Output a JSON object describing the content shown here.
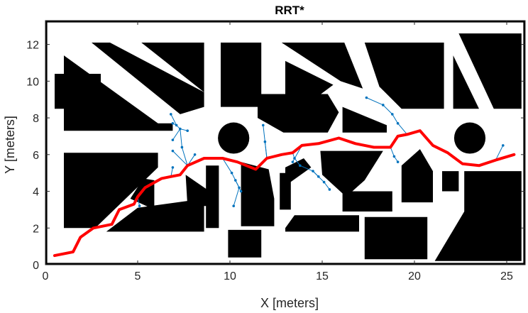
{
  "chart_data": {
    "type": "line",
    "title": "RRT*",
    "xlabel": "X [meters]",
    "ylabel": "Y [meters]",
    "xlim": [
      0,
      26
    ],
    "ylim": [
      0,
      13.3
    ],
    "xticks": [
      0,
      5,
      10,
      15,
      20,
      25
    ],
    "yticks": [
      0,
      2,
      4,
      6,
      8,
      10,
      12
    ],
    "grid": false,
    "legend": "none",
    "colors": {
      "path": "#ff0000",
      "tree": "#0072bd",
      "obstacle": "#000000",
      "free_space": "#ffffff"
    },
    "series": [
      {
        "role": "path",
        "x": [
          0.5,
          1.5,
          1.9,
          2.6,
          3.6,
          4.0,
          4.8,
          5.0,
          5.4,
          6.3,
          6.8,
          7.3,
          7.7,
          8.6,
          9.6,
          10.4,
          11.4,
          12.0,
          12.8,
          13.4,
          13.9,
          14.8,
          15.9,
          16.8,
          17.8,
          18.7,
          19.1,
          19.6,
          20.3,
          21.0,
          21.8,
          22.6,
          23.5,
          24.4,
          25.4
        ],
        "y": [
          0.5,
          0.7,
          1.5,
          2.0,
          2.2,
          3.0,
          3.3,
          3.7,
          4.2,
          4.7,
          4.8,
          4.9,
          5.4,
          5.8,
          5.8,
          5.6,
          5.2,
          5.8,
          6.0,
          6.1,
          6.5,
          6.6,
          6.9,
          6.6,
          6.4,
          6.4,
          7.0,
          7.1,
          7.3,
          6.5,
          6.1,
          5.5,
          5.4,
          5.7,
          6.0
        ]
      }
    ],
    "tree_edges": [
      [
        [
          6.8,
          8.2
        ],
        [
          7.1,
          7.6
        ]
      ],
      [
        [
          6.9,
          7.7
        ],
        [
          7.1,
          7.6
        ]
      ],
      [
        [
          7.1,
          7.6
        ],
        [
          7.3,
          7.4
        ]
      ],
      [
        [
          7.3,
          7.4
        ],
        [
          7.7,
          7.3
        ]
      ],
      [
        [
          7.3,
          7.4
        ],
        [
          6.9,
          6.8
        ]
      ],
      [
        [
          7.3,
          7.4
        ],
        [
          7.4,
          6.4
        ]
      ],
      [
        [
          7.4,
          6.4
        ],
        [
          7.7,
          5.4
        ]
      ],
      [
        [
          7.7,
          5.4
        ],
        [
          8.1,
          6.0
        ]
      ],
      [
        [
          7.7,
          5.4
        ],
        [
          6.9,
          6.2
        ]
      ],
      [
        [
          6.8,
          4.8
        ],
        [
          6.9,
          5.3
        ]
      ],
      [
        [
          5.0,
          3.7
        ],
        [
          5.1,
          3.2
        ]
      ],
      [
        [
          10.1,
          5.0
        ],
        [
          10.3,
          4.6
        ]
      ],
      [
        [
          10.3,
          4.6
        ],
        [
          10.6,
          4.0
        ]
      ],
      [
        [
          10.3,
          4.6
        ],
        [
          10.5,
          4.2
        ]
      ],
      [
        [
          10.5,
          4.2
        ],
        [
          10.2,
          3.2
        ]
      ],
      [
        [
          9.6,
          5.8
        ],
        [
          10.1,
          5.0
        ]
      ],
      [
        [
          12.0,
          5.8
        ],
        [
          11.8,
          7.6
        ]
      ],
      [
        [
          12.0,
          5.8
        ],
        [
          11.9,
          6.7
        ]
      ],
      [
        [
          13.4,
          6.1
        ],
        [
          13.5,
          5.8
        ]
      ],
      [
        [
          13.5,
          5.8
        ],
        [
          13.8,
          5.4
        ]
      ],
      [
        [
          13.8,
          5.4
        ],
        [
          14.5,
          5.1
        ]
      ],
      [
        [
          14.5,
          5.1
        ],
        [
          14.8,
          4.8
        ]
      ],
      [
        [
          14.5,
          5.1
        ],
        [
          15.1,
          4.5
        ]
      ],
      [
        [
          15.1,
          4.5
        ],
        [
          15.4,
          4.1
        ]
      ],
      [
        [
          13.9,
          6.5
        ],
        [
          13.4,
          5.6
        ]
      ],
      [
        [
          17.4,
          9.1
        ],
        [
          18.3,
          8.7
        ]
      ],
      [
        [
          18.3,
          8.7
        ],
        [
          18.8,
          8.2
        ]
      ],
      [
        [
          18.8,
          8.2
        ],
        [
          19.1,
          7.7
        ]
      ],
      [
        [
          19.1,
          7.7
        ],
        [
          19.6,
          7.1
        ]
      ],
      [
        [
          18.7,
          6.4
        ],
        [
          18.9,
          5.9
        ]
      ],
      [
        [
          18.9,
          5.9
        ],
        [
          19.1,
          5.6
        ]
      ],
      [
        [
          24.4,
          5.7
        ],
        [
          24.8,
          6.5
        ]
      ]
    ],
    "tree_nodes": [
      [
        6.8,
        8.2
      ],
      [
        6.9,
        7.7
      ],
      [
        7.1,
        7.6
      ],
      [
        7.3,
        7.4
      ],
      [
        7.7,
        7.3
      ],
      [
        6.9,
        6.8
      ],
      [
        7.4,
        6.4
      ],
      [
        8.1,
        6.0
      ],
      [
        6.9,
        6.2
      ],
      [
        6.9,
        5.3
      ],
      [
        5.1,
        3.2
      ],
      [
        10.3,
        4.6
      ],
      [
        10.6,
        4.0
      ],
      [
        10.5,
        4.2
      ],
      [
        10.2,
        3.2
      ],
      [
        10.1,
        5.0
      ],
      [
        11.8,
        7.6
      ],
      [
        11.9,
        6.7
      ],
      [
        13.5,
        5.8
      ],
      [
        13.8,
        5.4
      ],
      [
        14.5,
        5.1
      ],
      [
        14.8,
        4.8
      ],
      [
        15.1,
        4.5
      ],
      [
        15.4,
        4.1
      ],
      [
        13.4,
        5.6
      ],
      [
        17.4,
        9.1
      ],
      [
        18.3,
        8.7
      ],
      [
        18.8,
        8.2
      ],
      [
        19.1,
        7.7
      ],
      [
        18.9,
        5.9
      ],
      [
        19.1,
        5.6
      ],
      [
        24.8,
        6.5
      ],
      [
        25.4,
        6.0
      ]
    ],
    "obstacles": [
      {
        "shape": "polygon",
        "points": [
          [
            0.0,
            13.3
          ],
          [
            26.0,
            13.3
          ],
          [
            26.0,
            0.0
          ],
          [
            0.0,
            0.0
          ]
        ]
      }
    ],
    "free_space": [
      {
        "shape": "polygon",
        "points": [
          [
            0.1,
            13.2
          ],
          [
            25.9,
            13.2
          ],
          [
            25.9,
            0.1
          ],
          [
            0.1,
            0.1
          ]
        ]
      }
    ],
    "obstacle_blocks": [
      {
        "shape": "polygon",
        "points": [
          [
            1.0,
            11.4
          ],
          [
            6.1,
            7.7
          ],
          [
            6.9,
            7.7
          ],
          [
            6.9,
            7.3
          ],
          [
            1.0,
            7.3
          ]
        ]
      },
      {
        "shape": "polygon",
        "points": [
          [
            2.5,
            12.1
          ],
          [
            8.6,
            12.1
          ],
          [
            8.6,
            9.4
          ],
          [
            5.2,
            12.1
          ]
        ]
      },
      {
        "shape": "polygon",
        "points": [
          [
            3.5,
            12.1
          ],
          [
            8.6,
            9.4
          ],
          [
            8.6,
            8.6
          ],
          [
            7.3,
            8.2
          ],
          [
            2.5,
            12.1
          ]
        ]
      },
      {
        "shape": "polygon",
        "points": [
          [
            9.5,
            12.1
          ],
          [
            9.5,
            8.6
          ],
          [
            11.7,
            8.6
          ],
          [
            11.7,
            12.1
          ]
        ]
      },
      {
        "shape": "polygon",
        "points": [
          [
            12.1,
            12.1
          ],
          [
            16.2,
            12.1
          ],
          [
            17.2,
            9.6
          ],
          [
            16.0,
            10.0
          ],
          [
            12.8,
            12.1
          ]
        ]
      },
      {
        "shape": "polygon",
        "points": [
          [
            13.0,
            11.1
          ],
          [
            15.6,
            9.8
          ],
          [
            14.0,
            8.6
          ],
          [
            13.0,
            8.6
          ]
        ]
      },
      {
        "shape": "polygon",
        "points": [
          [
            11.5,
            9.3
          ],
          [
            15.3,
            9.3
          ],
          [
            15.9,
            8.3
          ],
          [
            15.3,
            7.2
          ],
          [
            12.9,
            7.2
          ],
          [
            11.5,
            8.0
          ]
        ]
      },
      {
        "shape": "polygon",
        "points": [
          [
            17.3,
            12.1
          ],
          [
            21.6,
            12.1
          ],
          [
            21.6,
            8.5
          ],
          [
            19.3,
            8.5
          ],
          [
            18.1,
            9.7
          ]
        ]
      },
      {
        "shape": "polygon",
        "points": [
          [
            16.1,
            8.6
          ],
          [
            18.5,
            7.6
          ],
          [
            18.5,
            7.2
          ],
          [
            16.1,
            7.2
          ]
        ]
      },
      {
        "shape": "polygon",
        "points": [
          [
            22.4,
            12.6
          ],
          [
            25.8,
            12.6
          ],
          [
            25.8,
            8.5
          ],
          [
            24.3,
            8.5
          ]
        ]
      },
      {
        "shape": "polygon",
        "points": [
          [
            22.1,
            11.4
          ],
          [
            23.5,
            8.5
          ],
          [
            22.1,
            8.5
          ]
        ]
      },
      {
        "shape": "polygon",
        "points": [
          [
            1.0,
            6.1
          ],
          [
            6.1,
            6.1
          ],
          [
            6.1,
            5.3
          ],
          [
            2.7,
            2.0
          ],
          [
            1.0,
            2.0
          ]
        ]
      },
      {
        "shape": "polygon",
        "points": [
          [
            5.3,
            4.7
          ],
          [
            5.9,
            4.6
          ],
          [
            5.9,
            3.0
          ],
          [
            4.6,
            3.6
          ]
        ]
      },
      {
        "shape": "polygon",
        "points": [
          [
            7.6,
            4.9
          ],
          [
            8.9,
            4.0
          ],
          [
            8.9,
            3.2
          ],
          [
            7.7,
            3.2
          ]
        ]
      },
      {
        "shape": "polygon",
        "points": [
          [
            8.7,
            5.4
          ],
          [
            9.4,
            5.4
          ],
          [
            9.4,
            2.0
          ],
          [
            8.7,
            2.0
          ]
        ]
      },
      {
        "shape": "polygon",
        "points": [
          [
            10.6,
            5.6
          ],
          [
            12.1,
            5.2
          ],
          [
            12.4,
            3.6
          ],
          [
            12.4,
            2.1
          ],
          [
            10.6,
            2.1
          ]
        ]
      },
      {
        "shape": "polygon",
        "points": [
          [
            12.7,
            5.0
          ],
          [
            13.3,
            5.0
          ],
          [
            13.3,
            3.0
          ],
          [
            12.7,
            3.0
          ]
        ]
      },
      {
        "shape": "polygon",
        "points": [
          [
            14.9,
            6.2
          ],
          [
            18.3,
            6.2
          ],
          [
            17.3,
            4.6
          ],
          [
            16.3,
            3.7
          ],
          [
            15.0,
            4.9
          ]
        ]
      },
      {
        "shape": "polygon",
        "points": [
          [
            16.1,
            4.0
          ],
          [
            18.8,
            4.0
          ],
          [
            18.8,
            2.9
          ],
          [
            16.1,
            2.9
          ]
        ]
      },
      {
        "shape": "polygon",
        "points": [
          [
            19.3,
            5.4
          ],
          [
            20.3,
            6.3
          ],
          [
            21.0,
            5.1
          ],
          [
            21.0,
            3.4
          ],
          [
            19.3,
            3.4
          ]
        ]
      },
      {
        "shape": "polygon",
        "points": [
          [
            21.5,
            5.1
          ],
          [
            22.4,
            5.1
          ],
          [
            22.4,
            4.0
          ],
          [
            21.5,
            4.0
          ]
        ]
      },
      {
        "shape": "polygon",
        "points": [
          [
            22.7,
            5.1
          ],
          [
            25.8,
            5.1
          ],
          [
            25.8,
            0.2
          ],
          [
            21.1,
            0.2
          ],
          [
            22.7,
            2.9
          ]
        ]
      },
      {
        "shape": "polygon",
        "points": [
          [
            3.3,
            1.8
          ],
          [
            8.6,
            1.8
          ],
          [
            8.6,
            3.6
          ],
          [
            5.0,
            3.1
          ]
        ]
      },
      {
        "shape": "polygon",
        "points": [
          [
            9.9,
            1.9
          ],
          [
            11.7,
            1.9
          ],
          [
            11.7,
            0.4
          ],
          [
            9.9,
            0.4
          ]
        ]
      },
      {
        "shape": "polygon",
        "points": [
          [
            13.0,
            2.0
          ],
          [
            13.5,
            2.7
          ],
          [
            17.0,
            2.7
          ],
          [
            17.0,
            1.8
          ],
          [
            13.0,
            1.8
          ]
        ]
      },
      {
        "shape": "polygon",
        "points": [
          [
            17.3,
            2.6
          ],
          [
            20.7,
            2.6
          ],
          [
            20.7,
            0.3
          ],
          [
            17.3,
            0.3
          ]
        ]
      },
      {
        "shape": "polygon",
        "points": [
          [
            0.5,
            10.4
          ],
          [
            3.0,
            10.4
          ],
          [
            3.0,
            8.5
          ],
          [
            0.5,
            8.5
          ]
        ]
      },
      {
        "shape": "polygon",
        "points": [
          [
            13.0,
            5.3
          ],
          [
            14.0,
            5.8
          ],
          [
            14.4,
            5.3
          ],
          [
            13.0,
            4.3
          ]
        ]
      }
    ],
    "circle_obstacles": [
      {
        "cx": 10.2,
        "cy": 6.9,
        "r": 0.85
      },
      {
        "cx": 23.0,
        "cy": 6.9,
        "r": 0.85
      }
    ]
  }
}
